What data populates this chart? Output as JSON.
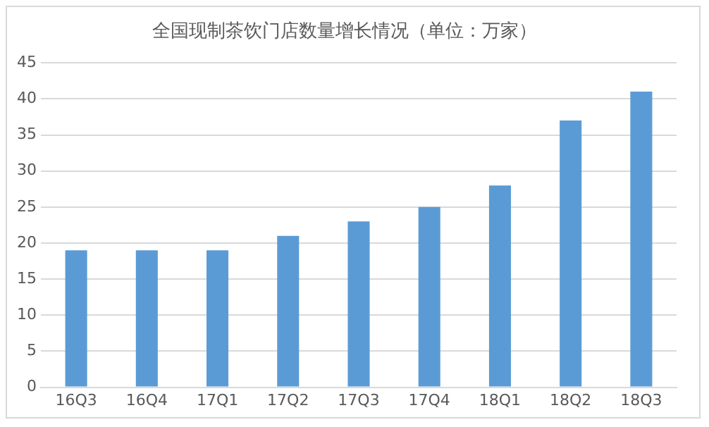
{
  "chart_data": {
    "type": "bar",
    "title": "全国现制茶饮门店数量增长情况（单位：万家）",
    "categories": [
      "16Q3",
      "16Q4",
      "17Q1",
      "17Q2",
      "17Q3",
      "17Q4",
      "18Q1",
      "18Q2",
      "18Q3"
    ],
    "values": [
      19,
      19,
      19,
      21,
      23,
      25,
      28,
      37,
      41
    ],
    "color": "#5b9bd5",
    "ylim": [
      0,
      45
    ],
    "yticks": [
      0,
      5,
      10,
      15,
      20,
      25,
      30,
      35,
      40,
      45
    ],
    "grid": "y",
    "legend": false
  }
}
